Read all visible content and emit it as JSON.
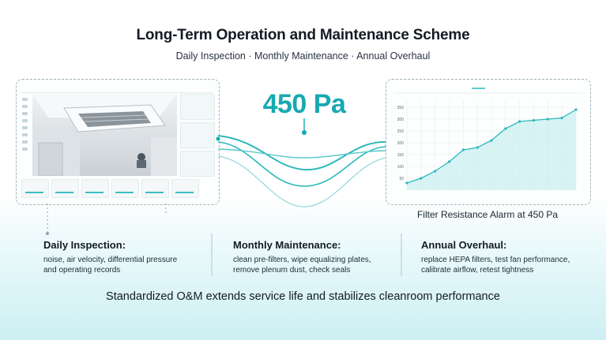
{
  "title": "Long-Term Operation and Maintenance Scheme",
  "subtitle": "Daily Inspection · Monthly Maintenance · Annual Overhaul",
  "resistance_value": "450 Pa",
  "alarm_label": "Filter Resistance Alarm at 450 Pa",
  "columns": [
    {
      "heading": "Daily Inspection:",
      "line1": "noise, air velocity, differential pressure",
      "line2": "and operating records"
    },
    {
      "heading": "Monthly Maintenance:",
      "line1": "clean pre-filters, wipe equalizing plates,",
      "line2": "remove plenum dust, check seals"
    },
    {
      "heading": "Annual Overhaul:",
      "line1": "replace HEPA filters, test fan performance,",
      "line2": "calibrate airflow, retest tightness"
    }
  ],
  "footer": "Standardized O&M extends service life and stabilizes cleanroom performance",
  "colors": {
    "accent": "#17a9b0",
    "curve": "#2cb8bb",
    "fill": "#c9eff0",
    "dashed": "#9fb3bb"
  },
  "chart_data": {
    "type": "area",
    "title": "",
    "xlabel": "",
    "ylabel": "",
    "y_ticks": [
      "350",
      "300",
      "250",
      "200",
      "150",
      "100",
      "50"
    ],
    "x": [
      0,
      1,
      2,
      3,
      4,
      5,
      6,
      7,
      8,
      9,
      10,
      11,
      12
    ],
    "values": [
      30,
      50,
      80,
      120,
      170,
      180,
      210,
      260,
      290,
      295,
      300,
      305,
      340
    ],
    "ylim": [
      0,
      380
    ],
    "grid": true
  }
}
